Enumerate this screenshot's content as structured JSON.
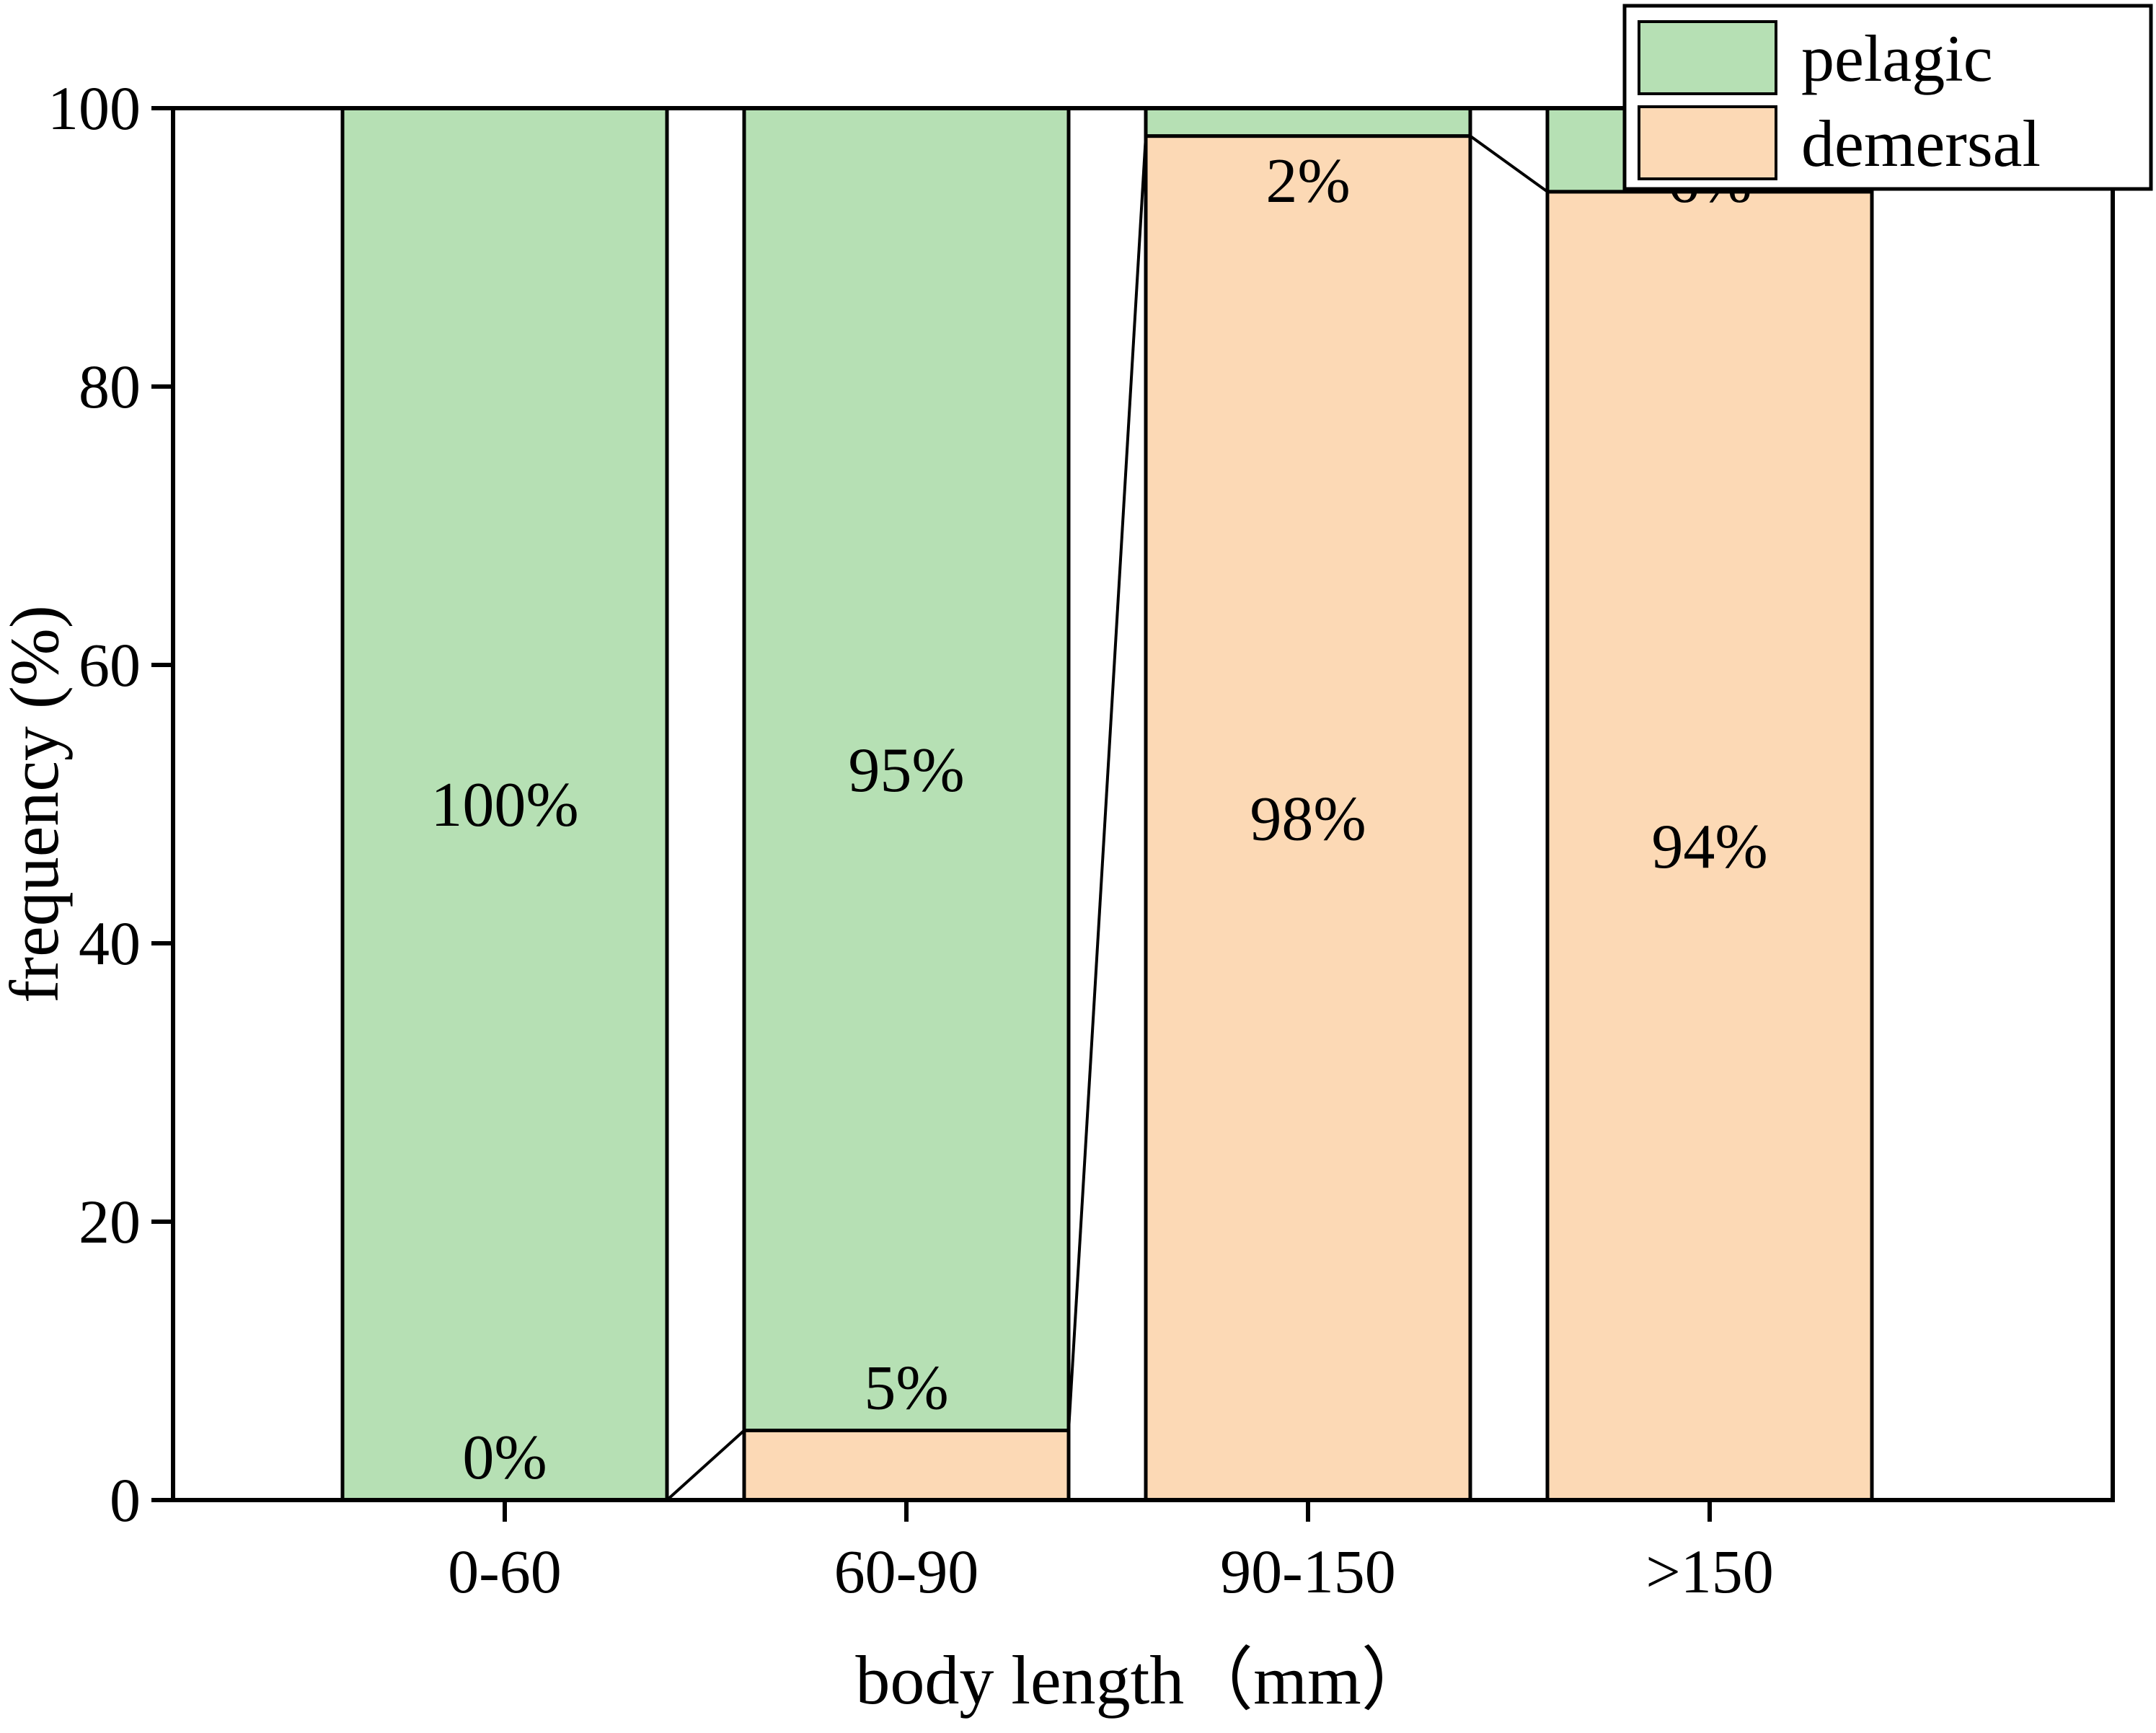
{
  "chart_data": {
    "type": "bar",
    "stacked": true,
    "title": "",
    "xlabel": "body length（mm）",
    "ylabel": "frequency (%)",
    "ylim": [
      0,
      100
    ],
    "yticks": [
      0,
      20,
      40,
      60,
      80,
      100
    ],
    "categories": [
      "0-60",
      "60-90",
      "90-150",
      ">150"
    ],
    "series": [
      {
        "name": "demersal",
        "color": "#fcd9b5",
        "values": [
          0,
          5,
          98,
          94
        ]
      },
      {
        "name": "pelagic",
        "color": "#b6e0b4",
        "values": [
          100,
          95,
          2,
          6
        ]
      }
    ],
    "bar_labels": {
      "demersal": [
        "0%",
        "5%",
        "98%",
        "94%"
      ],
      "pelagic": [
        "100%",
        "95%",
        "2%",
        "6%"
      ]
    },
    "legend": {
      "position": "top-right",
      "entries": [
        "pelagic",
        "demersal"
      ]
    },
    "axis_color": "#000000",
    "grid": false
  }
}
